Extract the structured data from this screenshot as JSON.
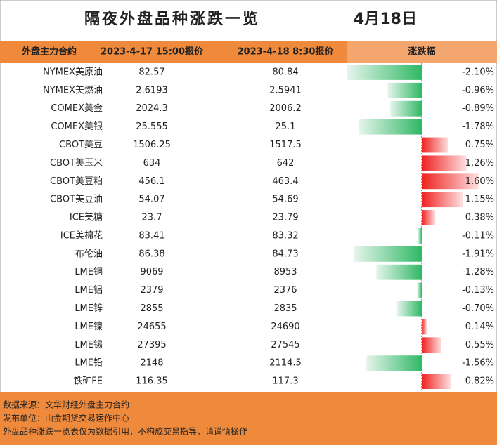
{
  "header": {
    "title": "隔夜外盘品种涨跌一览",
    "date": "4月18日"
  },
  "table": {
    "columns": [
      "外盘主力合约",
      "2023-4-17 15:00报价",
      "2023-4-18 8:30报价",
      "涨跌幅"
    ],
    "rows": [
      {
        "name": "NYMEX美原油",
        "prev": 82.57,
        "curr": 80.84,
        "change": {
          "value": -2.1,
          "label": "-2.10%"
        }
      },
      {
        "name": "NYMEX美燃油",
        "prev": 2.6193,
        "curr": 2.5941,
        "change": {
          "value": -0.96,
          "label": "-0.96%"
        }
      },
      {
        "name": "COMEX美金",
        "prev": 2024.3,
        "curr": 2006.2,
        "change": {
          "value": -0.89,
          "label": "-0.89%"
        }
      },
      {
        "name": "COMEX美银",
        "prev": 25.555,
        "curr": 25.1,
        "change": {
          "value": -1.78,
          "label": "-1.78%"
        }
      },
      {
        "name": "CBOT美豆",
        "prev": 1506.25,
        "curr": 1517.5,
        "change": {
          "value": 0.75,
          "label": "0.75%"
        }
      },
      {
        "name": "CBOT美玉米",
        "prev": 634,
        "curr": 642,
        "change": {
          "value": 1.26,
          "label": "1.26%"
        }
      },
      {
        "name": "CBOT美豆粕",
        "prev": 456.1,
        "curr": 463.4,
        "change": {
          "value": 1.6,
          "label": "1.60%"
        }
      },
      {
        "name": "CBOT美豆油",
        "prev": 54.07,
        "curr": 54.69,
        "change": {
          "value": 1.15,
          "label": "1.15%"
        }
      },
      {
        "name": "ICE美糖",
        "prev": 23.7,
        "curr": 23.79,
        "change": {
          "value": 0.38,
          "label": "0.38%"
        }
      },
      {
        "name": "ICE美棉花",
        "prev": 83.41,
        "curr": 83.32,
        "change": {
          "value": -0.11,
          "label": "-0.11%"
        }
      },
      {
        "name": "布伦油",
        "prev": 86.38,
        "curr": 84.73,
        "change": {
          "value": -1.91,
          "label": "-1.91%"
        }
      },
      {
        "name": "LME铜",
        "prev": 9069,
        "curr": 8953,
        "change": {
          "value": -1.28,
          "label": "-1.28%"
        }
      },
      {
        "name": "LME铝",
        "prev": 2379,
        "curr": 2376,
        "change": {
          "value": -0.13,
          "label": "-0.13%"
        }
      },
      {
        "name": "LME锌",
        "prev": 2855,
        "curr": 2835,
        "change": {
          "value": -0.7,
          "label": "-0.70%"
        }
      },
      {
        "name": "LME镍",
        "prev": 24655,
        "curr": 24690,
        "change": {
          "value": 0.14,
          "label": "0.14%"
        }
      },
      {
        "name": "LME锡",
        "prev": 27395,
        "curr": 27545,
        "change": {
          "value": 0.55,
          "label": "0.55%"
        }
      },
      {
        "name": "LME铅",
        "prev": 2148,
        "curr": 2114.5,
        "change": {
          "value": -1.56,
          "label": "-1.56%"
        }
      },
      {
        "name": "铁矿FE",
        "prev": 116.35,
        "curr": 117.3,
        "change": {
          "value": 0.82,
          "label": "0.82%"
        }
      }
    ]
  },
  "footer": [
    "数据来源：文华财经外盘主力合约",
    "发布单位：山金期货交易运作中心",
    "外盘品种涨跌一览表仅为数据引用，不构成交易指导，请谨慎操作"
  ]
}
